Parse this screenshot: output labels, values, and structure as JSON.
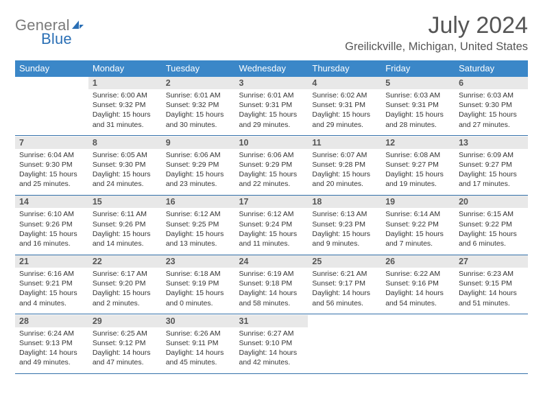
{
  "logo": {
    "part1": "General",
    "part2": "Blue"
  },
  "title": "July 2024",
  "location": "Greilickville, Michigan, United States",
  "colors": {
    "header_bg": "#3b87c8",
    "daynum_bg": "#e8e8e8",
    "sep": "#2f6da8"
  },
  "daysOfWeek": [
    "Sunday",
    "Monday",
    "Tuesday",
    "Wednesday",
    "Thursday",
    "Friday",
    "Saturday"
  ],
  "weeks": [
    [
      null,
      {
        "n": "1",
        "l1": "Sunrise: 6:00 AM",
        "l2": "Sunset: 9:32 PM",
        "l3": "Daylight: 15 hours",
        "l4": "and 31 minutes."
      },
      {
        "n": "2",
        "l1": "Sunrise: 6:01 AM",
        "l2": "Sunset: 9:32 PM",
        "l3": "Daylight: 15 hours",
        "l4": "and 30 minutes."
      },
      {
        "n": "3",
        "l1": "Sunrise: 6:01 AM",
        "l2": "Sunset: 9:31 PM",
        "l3": "Daylight: 15 hours",
        "l4": "and 29 minutes."
      },
      {
        "n": "4",
        "l1": "Sunrise: 6:02 AM",
        "l2": "Sunset: 9:31 PM",
        "l3": "Daylight: 15 hours",
        "l4": "and 29 minutes."
      },
      {
        "n": "5",
        "l1": "Sunrise: 6:03 AM",
        "l2": "Sunset: 9:31 PM",
        "l3": "Daylight: 15 hours",
        "l4": "and 28 minutes."
      },
      {
        "n": "6",
        "l1": "Sunrise: 6:03 AM",
        "l2": "Sunset: 9:30 PM",
        "l3": "Daylight: 15 hours",
        "l4": "and 27 minutes."
      }
    ],
    [
      {
        "n": "7",
        "l1": "Sunrise: 6:04 AM",
        "l2": "Sunset: 9:30 PM",
        "l3": "Daylight: 15 hours",
        "l4": "and 25 minutes."
      },
      {
        "n": "8",
        "l1": "Sunrise: 6:05 AM",
        "l2": "Sunset: 9:30 PM",
        "l3": "Daylight: 15 hours",
        "l4": "and 24 minutes."
      },
      {
        "n": "9",
        "l1": "Sunrise: 6:06 AM",
        "l2": "Sunset: 9:29 PM",
        "l3": "Daylight: 15 hours",
        "l4": "and 23 minutes."
      },
      {
        "n": "10",
        "l1": "Sunrise: 6:06 AM",
        "l2": "Sunset: 9:29 PM",
        "l3": "Daylight: 15 hours",
        "l4": "and 22 minutes."
      },
      {
        "n": "11",
        "l1": "Sunrise: 6:07 AM",
        "l2": "Sunset: 9:28 PM",
        "l3": "Daylight: 15 hours",
        "l4": "and 20 minutes."
      },
      {
        "n": "12",
        "l1": "Sunrise: 6:08 AM",
        "l2": "Sunset: 9:27 PM",
        "l3": "Daylight: 15 hours",
        "l4": "and 19 minutes."
      },
      {
        "n": "13",
        "l1": "Sunrise: 6:09 AM",
        "l2": "Sunset: 9:27 PM",
        "l3": "Daylight: 15 hours",
        "l4": "and 17 minutes."
      }
    ],
    [
      {
        "n": "14",
        "l1": "Sunrise: 6:10 AM",
        "l2": "Sunset: 9:26 PM",
        "l3": "Daylight: 15 hours",
        "l4": "and 16 minutes."
      },
      {
        "n": "15",
        "l1": "Sunrise: 6:11 AM",
        "l2": "Sunset: 9:26 PM",
        "l3": "Daylight: 15 hours",
        "l4": "and 14 minutes."
      },
      {
        "n": "16",
        "l1": "Sunrise: 6:12 AM",
        "l2": "Sunset: 9:25 PM",
        "l3": "Daylight: 15 hours",
        "l4": "and 13 minutes."
      },
      {
        "n": "17",
        "l1": "Sunrise: 6:12 AM",
        "l2": "Sunset: 9:24 PM",
        "l3": "Daylight: 15 hours",
        "l4": "and 11 minutes."
      },
      {
        "n": "18",
        "l1": "Sunrise: 6:13 AM",
        "l2": "Sunset: 9:23 PM",
        "l3": "Daylight: 15 hours",
        "l4": "and 9 minutes."
      },
      {
        "n": "19",
        "l1": "Sunrise: 6:14 AM",
        "l2": "Sunset: 9:22 PM",
        "l3": "Daylight: 15 hours",
        "l4": "and 7 minutes."
      },
      {
        "n": "20",
        "l1": "Sunrise: 6:15 AM",
        "l2": "Sunset: 9:22 PM",
        "l3": "Daylight: 15 hours",
        "l4": "and 6 minutes."
      }
    ],
    [
      {
        "n": "21",
        "l1": "Sunrise: 6:16 AM",
        "l2": "Sunset: 9:21 PM",
        "l3": "Daylight: 15 hours",
        "l4": "and 4 minutes."
      },
      {
        "n": "22",
        "l1": "Sunrise: 6:17 AM",
        "l2": "Sunset: 9:20 PM",
        "l3": "Daylight: 15 hours",
        "l4": "and 2 minutes."
      },
      {
        "n": "23",
        "l1": "Sunrise: 6:18 AM",
        "l2": "Sunset: 9:19 PM",
        "l3": "Daylight: 15 hours",
        "l4": "and 0 minutes."
      },
      {
        "n": "24",
        "l1": "Sunrise: 6:19 AM",
        "l2": "Sunset: 9:18 PM",
        "l3": "Daylight: 14 hours",
        "l4": "and 58 minutes."
      },
      {
        "n": "25",
        "l1": "Sunrise: 6:21 AM",
        "l2": "Sunset: 9:17 PM",
        "l3": "Daylight: 14 hours",
        "l4": "and 56 minutes."
      },
      {
        "n": "26",
        "l1": "Sunrise: 6:22 AM",
        "l2": "Sunset: 9:16 PM",
        "l3": "Daylight: 14 hours",
        "l4": "and 54 minutes."
      },
      {
        "n": "27",
        "l1": "Sunrise: 6:23 AM",
        "l2": "Sunset: 9:15 PM",
        "l3": "Daylight: 14 hours",
        "l4": "and 51 minutes."
      }
    ],
    [
      {
        "n": "28",
        "l1": "Sunrise: 6:24 AM",
        "l2": "Sunset: 9:13 PM",
        "l3": "Daylight: 14 hours",
        "l4": "and 49 minutes."
      },
      {
        "n": "29",
        "l1": "Sunrise: 6:25 AM",
        "l2": "Sunset: 9:12 PM",
        "l3": "Daylight: 14 hours",
        "l4": "and 47 minutes."
      },
      {
        "n": "30",
        "l1": "Sunrise: 6:26 AM",
        "l2": "Sunset: 9:11 PM",
        "l3": "Daylight: 14 hours",
        "l4": "and 45 minutes."
      },
      {
        "n": "31",
        "l1": "Sunrise: 6:27 AM",
        "l2": "Sunset: 9:10 PM",
        "l3": "Daylight: 14 hours",
        "l4": "and 42 minutes."
      },
      null,
      null,
      null
    ]
  ]
}
